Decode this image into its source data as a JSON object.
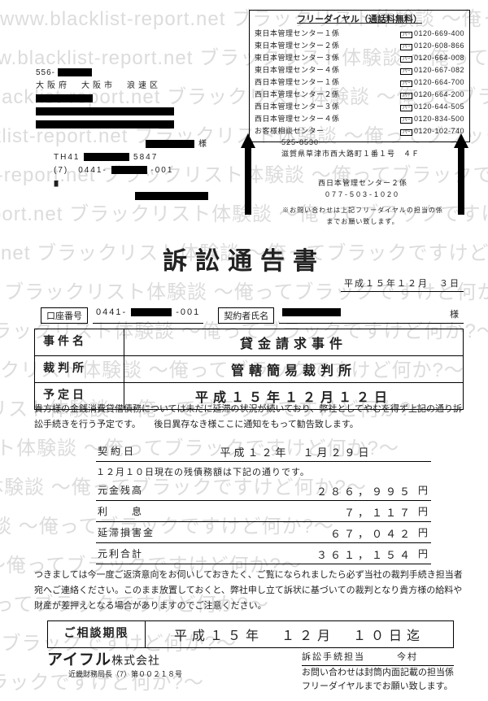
{
  "watermark_text": "www.blacklist-report.net ブラックリスト体験談 〜俺ってブラックですけど何か?〜 ",
  "tel_box": {
    "title": "フリーダイヤル（通話料無料）",
    "rows": [
      {
        "name": "東日本管理センター１係",
        "tel": "0120-669-400"
      },
      {
        "name": "東日本管理センター２係",
        "tel": "0120-608-866"
      },
      {
        "name": "東日本管理センター３係",
        "tel": "0120-664-008"
      },
      {
        "name": "東日本管理センター４係",
        "tel": "0120-667-082"
      },
      {
        "name": "西日本管理センター１係",
        "tel": "0120-664-700"
      },
      {
        "name": "西日本管理センター２係",
        "tel": "0120-664-200"
      },
      {
        "name": "西日本管理センター３係",
        "tel": "0120-644-505"
      },
      {
        "name": "西日本管理センター４係",
        "tel": "0120-834-500"
      },
      {
        "name": "お客様相談センター",
        "tel": "0120-102-740"
      }
    ]
  },
  "addr_left": {
    "postal": "556-",
    "city": "大阪府　大阪市　浪速区"
  },
  "recipient": {
    "sama": "様",
    "line1_a": "TH41",
    "line1_b": "5847",
    "line2": "(7)　0441-",
    "line2_b": "-001"
  },
  "sender": {
    "postal": "525-8530",
    "addr": "滋賀県草津市西大路町１番１号　４Ｆ",
    "center": "西日本管理センター２係",
    "tel": "077-503-1020",
    "note": "※お問い合わせは上記フリーダイヤルの担当の係までお願い致します。"
  },
  "title": "訴訟通告書",
  "doc_date": "平成１５年１２月　３日",
  "account": {
    "label": "口座番号",
    "val_a": "0441-",
    "val_b": "-001"
  },
  "contract": {
    "label": "契約者氏名",
    "sama": "様"
  },
  "case_table": [
    {
      "k": "事件名",
      "v": "貸金請求事件"
    },
    {
      "k": "裁判所",
      "v": "管轄簡易裁判所"
    },
    {
      "k": "予定日",
      "v": "平成１５年１２月１２日"
    }
  ],
  "body1": "貴方様の金銭消費貸借債務については未だに延滞の状況が続いており、弊社としてやむを得ず上記の通り訴訟手続きを行う予定です。　　後日異存なき様ここに通知をもって勧告致します。",
  "fin": {
    "contract_date_label": "契約日",
    "contract_date": "平成１２年　１月２９日",
    "asof": "１２月１０日現在の残債務額は下記の通りです。",
    "rows": [
      {
        "k": "元金残高",
        "v": "２８６，９９５",
        "u": "円"
      },
      {
        "k": "利　　息",
        "v": "７，１１７",
        "u": "円"
      },
      {
        "k": "延滞損害金",
        "v": "６７，０４２",
        "u": "円"
      },
      {
        "k": "元利合計",
        "v": "３６１，１５４",
        "u": "円"
      }
    ]
  },
  "body2": "つきましては今一度ご返済意向をお伺いしておきたく、ご覧になられましたら必ず当社の裁判手続き担当者宛へご連絡ください。このまま放置しておくと、弊社申し立て訴状に基づいての裁判となり貴方様の給料や財産が差押えとなる場合がありますのでご注意ください。",
  "deadline": {
    "label": "ご相談期限",
    "val": "平成１５年　１２月　１０日迄"
  },
  "company": {
    "name": "アイフル",
    "suffix": "株式会社",
    "sub": "近畿財務局長（7）第００２１８号"
  },
  "foot_right": {
    "line1": "訴訟手続担当　　　今村",
    "line2": "お問い合わせは封筒内面記載の担当係",
    "line3": "フリーダイヤルまでお願い致します。"
  }
}
